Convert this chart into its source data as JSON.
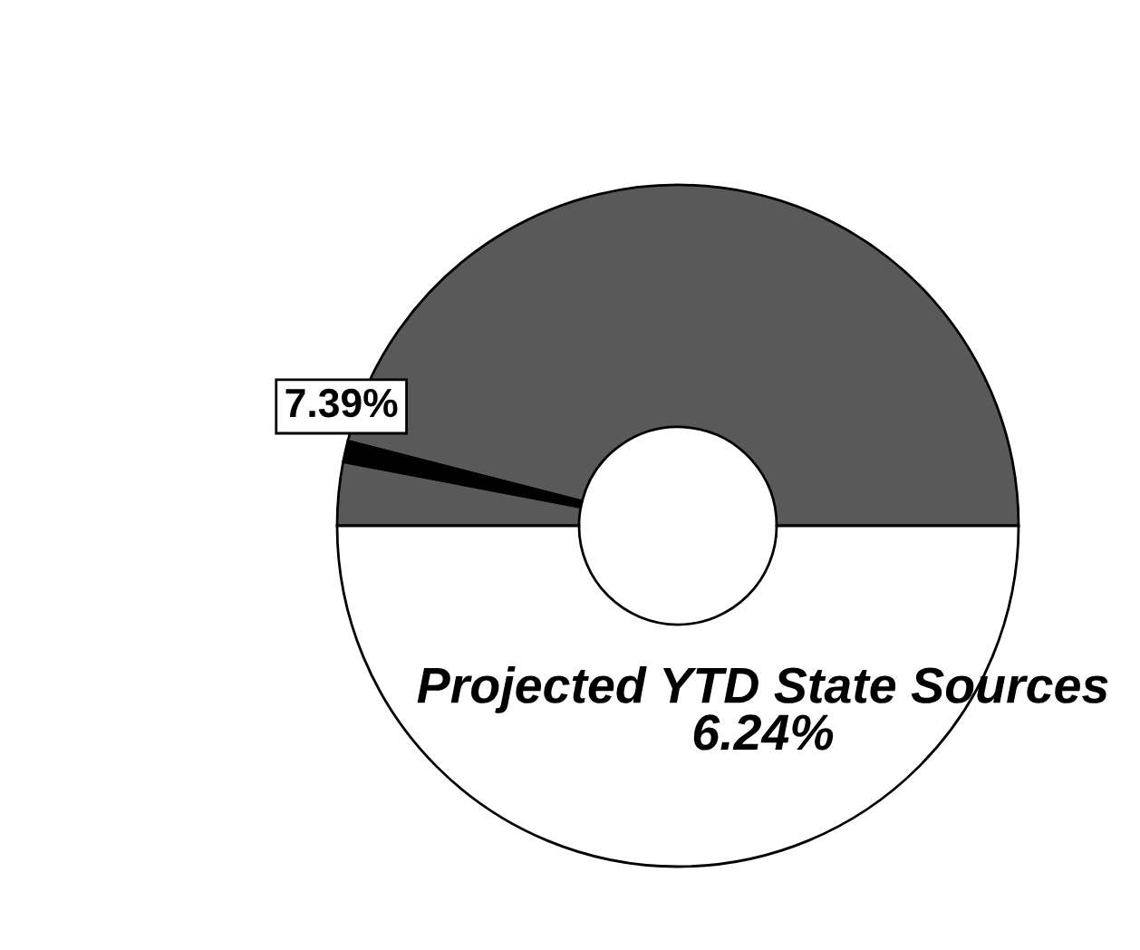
{
  "chart_data": {
    "type": "donut",
    "categories": [
      null,
      null,
      null,
      null
    ],
    "values": [
      46,
      1,
      3,
      50
    ],
    "colors": [
      "#595959",
      "#000000",
      "#595959",
      "#ffffff"
    ],
    "annotations": [
      "7.39%",
      "Projected YTD State Sources\n6.24%"
    ]
  }
}
